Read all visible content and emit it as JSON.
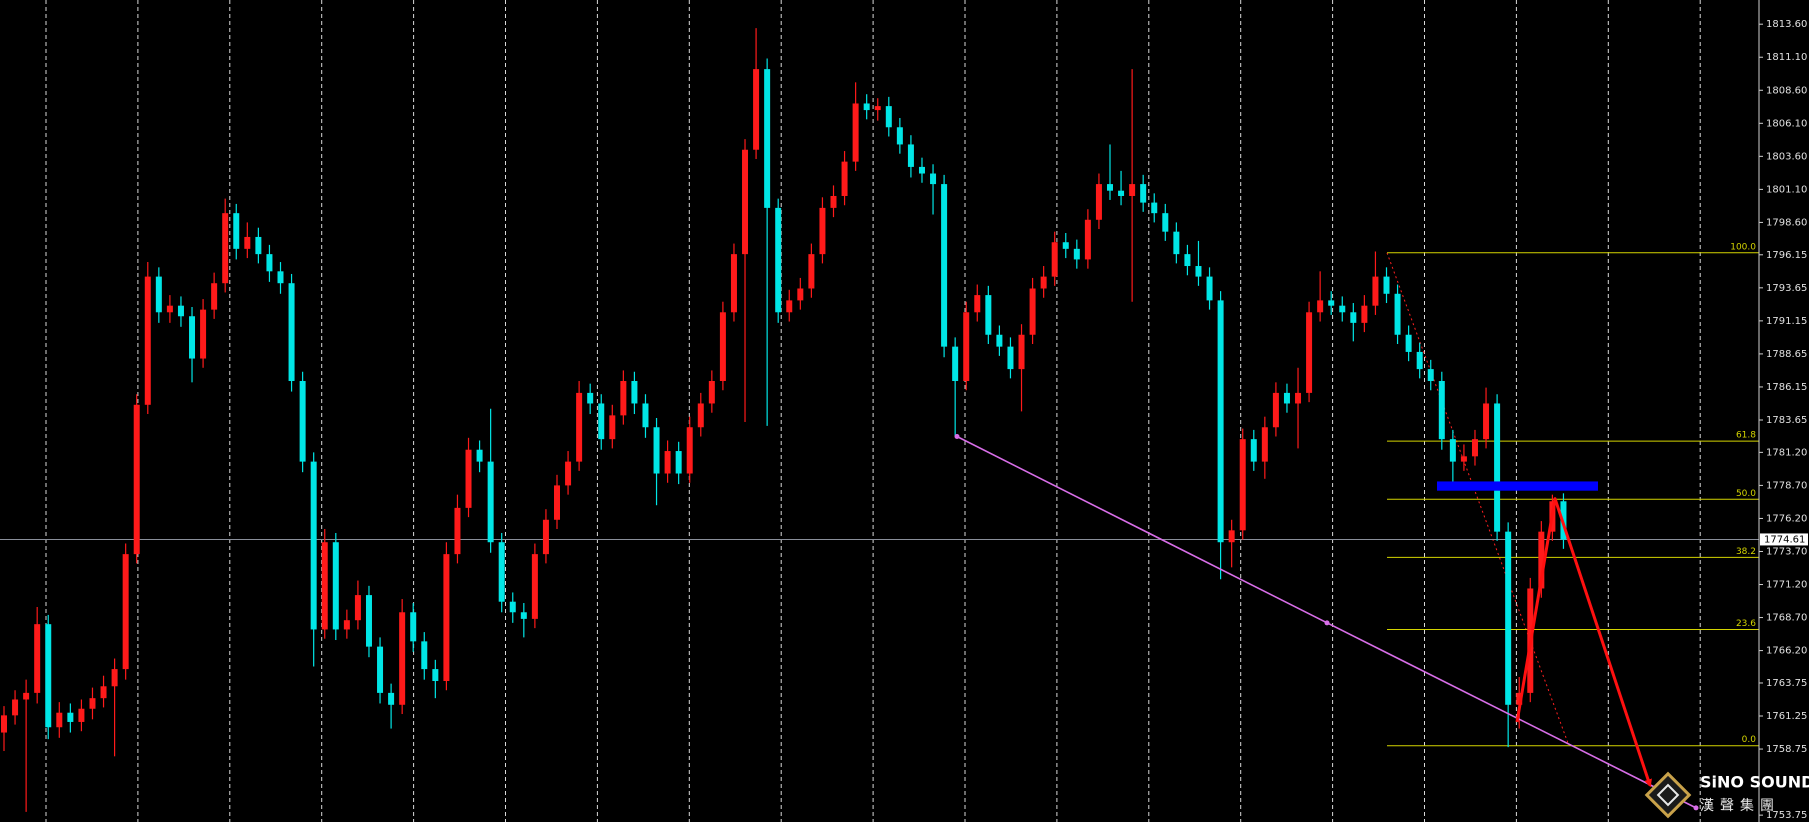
{
  "chart_data": {
    "type": "candlestick",
    "colors": {
      "up": "#ff1a1a",
      "down": "#00e6e6",
      "background": "#000000",
      "separator": "#ffffff",
      "axis_text": "#e0e0e0"
    },
    "ylim": [
      1753.23,
      1815.43
    ],
    "yticks": [
      {
        "value": 1813.6,
        "label": "1813.60"
      },
      {
        "value": 1811.1,
        "label": "1811.10"
      },
      {
        "value": 1808.6,
        "label": "1808.60"
      },
      {
        "value": 1806.1,
        "label": "1806.10"
      },
      {
        "value": 1803.6,
        "label": "1803.60"
      },
      {
        "value": 1801.1,
        "label": "1801.10"
      },
      {
        "value": 1798.6,
        "label": "1798.60"
      },
      1796.15,
      1793.65,
      1791.15,
      1788.65,
      1786.15,
      1783.65,
      {
        "value": 1781.2,
        "label": "1781.20"
      },
      {
        "value": 1778.7,
        "label": "1778.70"
      },
      {
        "value": 1776.2,
        "label": "1776.20"
      },
      {
        "value": 1773.7,
        "label": "1773.70"
      },
      {
        "value": 1771.2,
        "label": "1771.20"
      },
      {
        "value": 1768.7,
        "label": "1768.70"
      },
      {
        "value": 1766.2,
        "label": "1766.20"
      },
      1763.75,
      1761.25,
      1758.75,
      1753.75
    ],
    "current_price": 1774.61,
    "current_price_color": "#8a8f9a",
    "candles": [
      [
        1760.0,
        1762.0,
        1758.6,
        1761.3
      ],
      [
        1761.3,
        1763.2,
        1760.6,
        1762.5
      ],
      [
        1762.5,
        1764.0,
        1754.0,
        1763.0
      ],
      [
        1763.0,
        1769.5,
        1762.2,
        1768.2
      ],
      [
        1768.2,
        1768.9,
        1759.5,
        1760.4
      ],
      [
        1760.4,
        1762.3,
        1759.6,
        1761.5
      ],
      [
        1761.5,
        1762.2,
        1760.0,
        1760.8
      ],
      [
        1760.8,
        1762.5,
        1760.1,
        1761.8
      ],
      [
        1761.8,
        1763.4,
        1761.0,
        1762.6
      ],
      [
        1762.6,
        1764.3,
        1761.9,
        1763.5
      ],
      [
        1763.5,
        1765.6,
        1758.2,
        1764.8
      ],
      [
        1764.8,
        1774.3,
        1764.0,
        1773.5
      ],
      [
        1773.5,
        1785.6,
        1772.8,
        1784.8
      ],
      [
        1784.8,
        1795.6,
        1784.1,
        1794.5
      ],
      [
        1794.5,
        1795.2,
        1791.0,
        1791.8
      ],
      [
        1791.8,
        1793.1,
        1791.0,
        1792.3
      ],
      [
        1792.3,
        1793.0,
        1790.7,
        1791.5
      ],
      [
        1791.5,
        1792.2,
        1786.5,
        1788.3
      ],
      [
        1788.3,
        1792.8,
        1787.6,
        1792.0
      ],
      [
        1792.0,
        1794.8,
        1791.3,
        1794.0
      ],
      [
        1794.0,
        1800.4,
        1793.3,
        1799.3
      ],
      [
        1799.3,
        1800.0,
        1795.8,
        1796.6
      ],
      [
        1796.6,
        1798.6,
        1795.9,
        1797.5
      ],
      [
        1797.5,
        1798.2,
        1795.5,
        1796.2
      ],
      [
        1796.2,
        1796.9,
        1794.1,
        1794.9
      ],
      [
        1794.9,
        1795.6,
        1793.2,
        1794.0
      ],
      [
        1794.0,
        1794.7,
        1785.8,
        1786.6
      ],
      [
        1786.6,
        1787.3,
        1779.7,
        1780.5
      ],
      [
        1780.5,
        1781.2,
        1765.0,
        1767.8
      ],
      [
        1767.8,
        1775.4,
        1767.1,
        1774.4
      ],
      [
        1774.4,
        1775.1,
        1767.0,
        1767.8
      ],
      [
        1767.8,
        1769.3,
        1767.1,
        1768.5
      ],
      [
        1768.5,
        1771.5,
        1767.8,
        1770.4
      ],
      [
        1770.4,
        1771.1,
        1765.7,
        1766.5
      ],
      [
        1766.5,
        1767.2,
        1762.2,
        1763.0
      ],
      [
        1763.0,
        1763.7,
        1760.3,
        1762.1
      ],
      [
        1762.1,
        1770.1,
        1761.4,
        1769.1
      ],
      [
        1769.1,
        1769.8,
        1766.1,
        1766.9
      ],
      [
        1766.9,
        1767.6,
        1764.0,
        1764.8
      ],
      [
        1764.8,
        1765.5,
        1762.6,
        1763.9
      ],
      [
        1763.9,
        1774.4,
        1763.2,
        1773.5
      ],
      [
        1773.5,
        1778.0,
        1772.8,
        1777.0
      ],
      [
        1777.0,
        1782.3,
        1776.3,
        1781.4
      ],
      [
        1781.4,
        1782.1,
        1779.7,
        1780.5
      ],
      [
        1780.5,
        1784.5,
        1773.6,
        1774.4
      ],
      [
        1774.4,
        1775.1,
        1769.1,
        1769.9
      ],
      [
        1769.9,
        1770.6,
        1768.3,
        1769.1
      ],
      [
        1769.1,
        1769.8,
        1767.2,
        1768.6
      ],
      [
        1768.6,
        1774.3,
        1767.9,
        1773.5
      ],
      [
        1773.5,
        1776.9,
        1772.8,
        1776.1
      ],
      [
        1776.1,
        1779.5,
        1775.4,
        1778.7
      ],
      [
        1778.7,
        1781.3,
        1778.0,
        1780.5
      ],
      [
        1780.5,
        1786.6,
        1779.8,
        1785.7
      ],
      [
        1785.7,
        1786.4,
        1784.1,
        1784.9
      ],
      [
        1784.9,
        1785.6,
        1781.4,
        1782.2
      ],
      [
        1782.2,
        1784.8,
        1781.5,
        1784.0
      ],
      [
        1784.0,
        1787.4,
        1783.3,
        1786.6
      ],
      [
        1786.6,
        1787.3,
        1784.1,
        1784.9
      ],
      [
        1784.9,
        1785.6,
        1782.3,
        1783.1
      ],
      [
        1783.1,
        1783.8,
        1777.2,
        1779.6
      ],
      [
        1779.6,
        1782.1,
        1778.9,
        1781.3
      ],
      [
        1781.3,
        1782.0,
        1778.8,
        1779.6
      ],
      [
        1779.6,
        1783.9,
        1778.9,
        1783.1
      ],
      [
        1783.1,
        1785.7,
        1782.4,
        1784.9
      ],
      [
        1784.9,
        1787.4,
        1784.2,
        1786.6
      ],
      [
        1786.6,
        1792.6,
        1785.9,
        1791.8
      ],
      [
        1791.8,
        1797.0,
        1791.1,
        1796.2
      ],
      [
        1796.2,
        1804.9,
        1783.5,
        1804.1
      ],
      [
        1804.1,
        1813.3,
        1803.4,
        1810.2
      ],
      [
        1810.2,
        1811.0,
        1783.2,
        1799.7
      ],
      [
        1799.7,
        1800.4,
        1791.0,
        1791.8
      ],
      [
        1791.8,
        1793.5,
        1791.1,
        1792.7
      ],
      [
        1792.7,
        1794.4,
        1792.0,
        1793.6
      ],
      [
        1793.6,
        1797.0,
        1792.9,
        1796.2
      ],
      [
        1796.2,
        1800.5,
        1795.5,
        1799.7
      ],
      [
        1799.7,
        1801.4,
        1799.0,
        1800.6
      ],
      [
        1800.6,
        1804.0,
        1799.9,
        1803.2
      ],
      [
        1803.2,
        1809.2,
        1802.5,
        1807.6
      ],
      [
        1807.6,
        1808.3,
        1806.4,
        1807.1
      ],
      [
        1807.1,
        1808.0,
        1806.3,
        1807.4
      ],
      [
        1807.4,
        1808.1,
        1805.1,
        1805.8
      ],
      [
        1805.8,
        1806.5,
        1803.8,
        1804.5
      ],
      [
        1804.5,
        1805.2,
        1802.0,
        1802.8
      ],
      [
        1802.8,
        1803.5,
        1801.6,
        1802.3
      ],
      [
        1802.3,
        1803.0,
        1799.2,
        1801.5
      ],
      [
        1801.5,
        1802.2,
        1788.4,
        1789.2
      ],
      [
        1789.2,
        1789.9,
        1782.4,
        1786.6
      ],
      [
        1786.6,
        1792.6,
        1785.9,
        1791.8
      ],
      [
        1791.8,
        1793.9,
        1791.1,
        1793.1
      ],
      [
        1793.1,
        1793.8,
        1789.4,
        1790.1
      ],
      [
        1790.1,
        1790.8,
        1788.5,
        1789.2
      ],
      [
        1789.2,
        1789.9,
        1786.8,
        1787.5
      ],
      [
        1787.5,
        1790.9,
        1784.3,
        1790.1
      ],
      [
        1790.1,
        1794.4,
        1789.4,
        1793.6
      ],
      [
        1793.6,
        1795.3,
        1792.9,
        1794.5
      ],
      [
        1794.5,
        1797.9,
        1793.8,
        1797.1
      ],
      [
        1797.1,
        1797.8,
        1795.9,
        1796.6
      ],
      [
        1796.6,
        1797.3,
        1795.1,
        1795.8
      ],
      [
        1795.8,
        1799.6,
        1795.1,
        1798.8
      ],
      [
        1798.8,
        1802.3,
        1798.1,
        1801.5
      ],
      [
        1801.5,
        1804.5,
        1800.3,
        1801.0
      ],
      [
        1801.0,
        1802.5,
        1799.9,
        1800.6
      ],
      [
        1800.6,
        1810.2,
        1792.6,
        1801.5
      ],
      [
        1801.5,
        1802.2,
        1799.4,
        1800.1
      ],
      [
        1800.1,
        1800.8,
        1798.6,
        1799.3
      ],
      [
        1799.3,
        1800.0,
        1797.2,
        1797.9
      ],
      [
        1797.9,
        1798.6,
        1795.5,
        1796.2
      ],
      [
        1796.2,
        1796.9,
        1794.6,
        1795.3
      ],
      [
        1795.3,
        1797.2,
        1793.8,
        1794.5
      ],
      [
        1794.5,
        1795.2,
        1792.0,
        1792.7
      ],
      [
        1792.7,
        1793.4,
        1771.6,
        1774.4
      ],
      [
        1774.4,
        1776.1,
        1772.5,
        1775.3
      ],
      [
        1775.3,
        1783.0,
        1774.6,
        1782.2
      ],
      [
        1782.2,
        1782.9,
        1779.8,
        1780.5
      ],
      [
        1780.5,
        1783.9,
        1779.2,
        1783.1
      ],
      [
        1783.1,
        1786.5,
        1782.4,
        1785.7
      ],
      [
        1785.7,
        1786.4,
        1784.2,
        1784.9
      ],
      [
        1784.9,
        1787.6,
        1781.5,
        1785.7
      ],
      [
        1785.7,
        1792.6,
        1785.0,
        1791.8
      ],
      [
        1791.8,
        1794.9,
        1791.1,
        1792.7
      ],
      [
        1792.7,
        1793.4,
        1791.6,
        1792.3
      ],
      [
        1792.3,
        1793.0,
        1791.1,
        1791.8
      ],
      [
        1791.8,
        1792.5,
        1789.6,
        1791.0
      ],
      [
        1791.0,
        1793.1,
        1790.3,
        1792.3
      ],
      [
        1792.3,
        1796.4,
        1791.6,
        1794.5
      ],
      [
        1794.5,
        1795.2,
        1792.5,
        1793.2
      ],
      [
        1793.2,
        1793.9,
        1789.4,
        1790.1
      ],
      [
        1790.1,
        1790.8,
        1788.1,
        1788.8
      ],
      [
        1788.8,
        1789.5,
        1786.8,
        1787.5
      ],
      [
        1787.5,
        1788.2,
        1785.9,
        1786.6
      ],
      [
        1786.6,
        1787.3,
        1781.4,
        1782.2
      ],
      [
        1782.2,
        1782.9,
        1778.9,
        1780.5
      ],
      [
        1780.5,
        1781.8,
        1779.8,
        1780.9
      ],
      [
        1780.9,
        1782.9,
        1780.2,
        1782.2
      ],
      [
        1782.2,
        1786.1,
        1781.5,
        1784.9
      ],
      [
        1784.9,
        1785.6,
        1774.5,
        1775.2
      ],
      [
        1775.2,
        1775.9,
        1758.9,
        1762.1
      ],
      [
        1762.1,
        1764.2,
        1760.3,
        1763.0
      ],
      [
        1763.0,
        1771.7,
        1762.3,
        1770.9
      ],
      [
        1770.9,
        1776.0,
        1770.2,
        1775.2
      ],
      [
        1775.2,
        1778.0,
        1774.5,
        1777.5
      ],
      [
        1777.5,
        1778.1,
        1773.9,
        1774.6
      ]
    ],
    "fibonacci": {
      "color": "#d4d400",
      "anchor_color": "#ff2020",
      "levels": [
        {
          "value": 1796.3,
          "label": "100.0"
        },
        {
          "value": 1782.05,
          "label": "61.8"
        },
        {
          "value": 1777.65,
          "label": "50.0"
        },
        {
          "value": 1773.25,
          "label": "38.2"
        },
        {
          "value": 1767.8,
          "label": "23.6"
        },
        {
          "value": 1759.0,
          "label": "0.0"
        }
      ]
    },
    "trendline": {
      "color": "#d86ee8",
      "values": [
        1782.4,
        1768.3,
        1754.3
      ]
    },
    "arrow": {
      "color": "#ff1010",
      "values": [
        1760.8,
        1777.7,
        1756.0
      ]
    },
    "zone": {
      "color": "#0000ff",
      "values": [
        1778.3,
        1779.0
      ]
    },
    "logo": {
      "name": "SiNO SOUND",
      "subtitle": "漢聲集團"
    }
  }
}
